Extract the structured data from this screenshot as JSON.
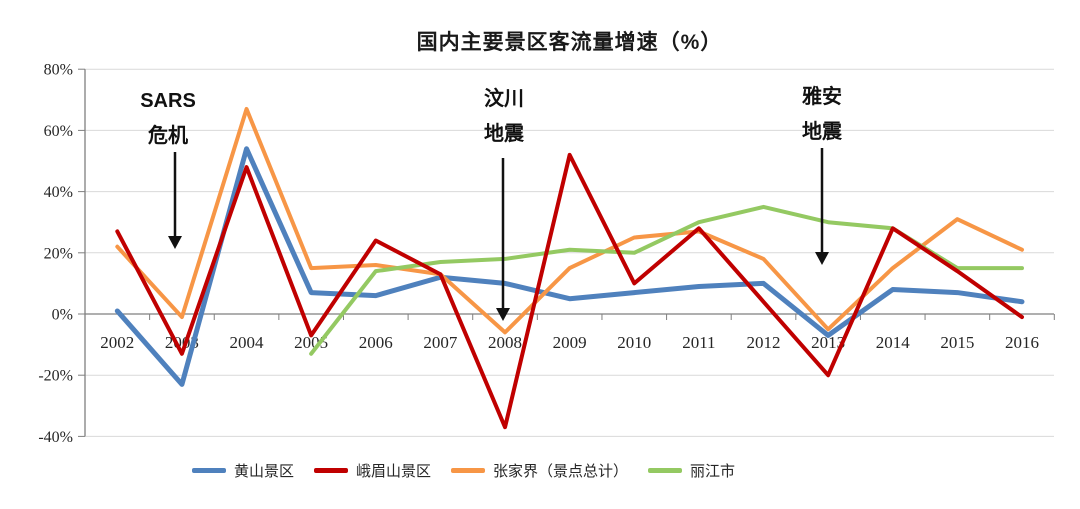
{
  "title": "国内主要景区客流量增速（%）",
  "annotations": [
    {
      "lines": [
        "SARS",
        "危机"
      ],
      "points_to_year": "2003"
    },
    {
      "lines": [
        "汶川",
        "地震"
      ],
      "points_to_year": "2008"
    },
    {
      "lines": [
        "雅安",
        "地震"
      ],
      "points_to_year": "2013"
    }
  ],
  "chart_data": {
    "type": "line",
    "title": "国内主要景区客流量增速（%）",
    "x": [
      "2002",
      "2003",
      "2004",
      "2005",
      "2006",
      "2007",
      "2008",
      "2009",
      "2010",
      "2011",
      "2012",
      "2013",
      "2014",
      "2015",
      "2016"
    ],
    "series": [
      {
        "key": "huangshan",
        "name": "黄山景区",
        "color": "#4F81BD",
        "width": 5,
        "values": [
          1,
          -23,
          54,
          7,
          6,
          12,
          10,
          5,
          7,
          9,
          10,
          -7,
          8,
          7,
          4
        ]
      },
      {
        "key": "emeishan",
        "name": "峨眉山景区",
        "color": "#C00000",
        "width": 4,
        "values": [
          27,
          -13,
          48,
          -7,
          24,
          13,
          -37,
          52,
          10,
          28,
          4,
          -20,
          28,
          14,
          -1
        ]
      },
      {
        "key": "zhangjiajie",
        "name": "张家界（景点总计）",
        "color": "#F79646",
        "width": 4,
        "values": [
          22,
          -1,
          67,
          15,
          16,
          13,
          -6,
          15,
          25,
          27,
          18,
          -5,
          15,
          31,
          21
        ]
      },
      {
        "key": "lijiang",
        "name": "丽江市",
        "color": "#94C962",
        "width": 4,
        "values": [
          null,
          null,
          null,
          -13,
          14,
          17,
          18,
          21,
          20,
          30,
          35,
          30,
          28,
          15,
          15
        ]
      }
    ],
    "ylim": [
      -40,
      80
    ],
    "y_ticks": [
      80,
      60,
      40,
      20,
      0,
      -20,
      -40
    ],
    "tick_suffix": "%",
    "grid": true,
    "legend_position": "bottom",
    "axis_color": "#7F7F7F",
    "gridline_color": "#D9D9D9",
    "label_color": "#262626",
    "annotation_color": "#111111"
  }
}
